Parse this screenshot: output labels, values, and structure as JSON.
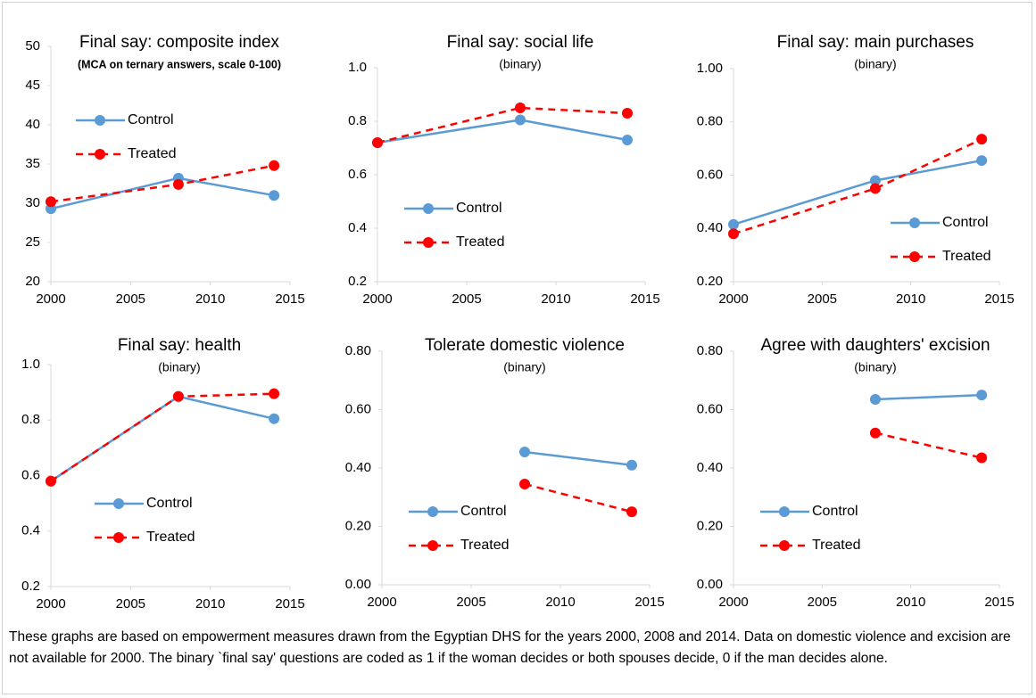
{
  "chart_data": [
    {
      "type": "line",
      "title": "Final say: composite index",
      "subtitle": "(MCA on ternary answers, scale 0-100)",
      "x": [
        2000,
        2008,
        2014
      ],
      "xlim": [
        2000,
        2015
      ],
      "xticks": [
        2000,
        2005,
        2010,
        2015
      ],
      "ylim": [
        20,
        50
      ],
      "yticks": [
        20,
        25,
        30,
        35,
        40,
        45,
        50
      ],
      "legend": "upper left",
      "series": [
        {
          "name": "Control",
          "color": "#5b9bd5",
          "values": [
            29.3,
            33.2,
            31.0
          ]
        },
        {
          "name": "Treated",
          "color": "#ff0000",
          "values": [
            30.2,
            32.4,
            34.8
          ]
        }
      ]
    },
    {
      "type": "line",
      "title": "Final say: social life",
      "subtitle": "(binary)",
      "x": [
        2000,
        2008,
        2014
      ],
      "xlim": [
        2000,
        2015
      ],
      "xticks": [
        2000,
        2005,
        2010,
        2015
      ],
      "ylim": [
        0.2,
        1.0
      ],
      "yticks": [
        0.2,
        0.4,
        0.6,
        0.8,
        {
          "value": 1,
          "label": "1.0"
        }
      ],
      "legend": "lower left",
      "series": [
        {
          "name": "Control",
          "color": "#5b9bd5",
          "values": [
            0.72,
            0.805,
            0.73
          ]
        },
        {
          "name": "Treated",
          "color": "#ff0000",
          "values": [
            0.72,
            0.85,
            0.83
          ]
        }
      ]
    },
    {
      "type": "line",
      "title": "Final say: main purchases",
      "subtitle": "(binary)",
      "x": [
        2000,
        2008,
        2014
      ],
      "xlim": [
        2000,
        2015
      ],
      "xticks": [
        2000,
        2005,
        2010,
        2015
      ],
      "ylim": [
        0.2,
        1.0
      ],
      "yticks": [
        {
          "value": 0.2,
          "label": "0.20"
        },
        {
          "value": 0.4,
          "label": "0.40"
        },
        {
          "value": 0.6,
          "label": "0.60"
        },
        {
          "value": 0.8,
          "label": "0.80"
        },
        {
          "value": 1,
          "label": "1.00"
        }
      ],
      "legend": "lower right",
      "series": [
        {
          "name": "Control",
          "color": "#5b9bd5",
          "values": [
            0.415,
            0.58,
            0.655
          ]
        },
        {
          "name": "Treated",
          "color": "#ff0000",
          "values": [
            0.38,
            0.55,
            0.735
          ]
        }
      ]
    },
    {
      "type": "line",
      "title": "Final say: health",
      "subtitle": "(binary)",
      "x": [
        2000,
        2008,
        2014
      ],
      "xlim": [
        2000,
        2015
      ],
      "xticks": [
        2000,
        2005,
        2010,
        2015
      ],
      "ylim": [
        0.2,
        1.0
      ],
      "yticks": [
        0.2,
        0.4,
        0.6,
        0.8,
        {
          "value": 1,
          "label": "1.0"
        }
      ],
      "legend": "lower center",
      "series": [
        {
          "name": "Control",
          "color": "#5b9bd5",
          "values": [
            0.58,
            0.885,
            0.805
          ]
        },
        {
          "name": "Treated",
          "color": "#ff0000",
          "values": [
            0.58,
            0.885,
            0.895
          ]
        }
      ]
    },
    {
      "type": "line",
      "title": "Tolerate domestic violence",
      "subtitle": "(binary)",
      "x": [
        2000,
        2008,
        2014
      ],
      "xlim": [
        2000,
        2015
      ],
      "xticks": [
        2000,
        2005,
        2010,
        2015
      ],
      "ylim": [
        0,
        0.8
      ],
      "yticks": [
        {
          "value": 0,
          "label": "0.00"
        },
        {
          "value": 0.2,
          "label": "0.20"
        },
        {
          "value": 0.4,
          "label": "0.40"
        },
        {
          "value": 0.6,
          "label": "0.60"
        },
        {
          "value": 0.8,
          "label": "0.80"
        }
      ],
      "legend": "lower left",
      "series": [
        {
          "name": "Control",
          "color": "#5b9bd5",
          "values": [
            null,
            0.455,
            0.41
          ]
        },
        {
          "name": "Treated",
          "color": "#ff0000",
          "values": [
            null,
            0.345,
            0.25
          ]
        }
      ]
    },
    {
      "type": "line",
      "title": "Agree with daughters' excision",
      "subtitle": "(binary)",
      "x": [
        2000,
        2008,
        2014
      ],
      "xlim": [
        2000,
        2015
      ],
      "xticks": [
        2000,
        2005,
        2010,
        2015
      ],
      "ylim": [
        0,
        0.8
      ],
      "yticks": [
        {
          "value": 0,
          "label": "0.00"
        },
        {
          "value": 0.2,
          "label": "0.20"
        },
        {
          "value": 0.4,
          "label": "0.40"
        },
        {
          "value": 0.6,
          "label": "0.60"
        },
        {
          "value": 0.8,
          "label": "0.80"
        }
      ],
      "legend": "lower left",
      "series": [
        {
          "name": "Control",
          "color": "#5b9bd5",
          "values": [
            null,
            0.635,
            0.65
          ]
        },
        {
          "name": "Treated",
          "color": "#ff0000",
          "values": [
            null,
            0.52,
            0.435
          ]
        }
      ]
    }
  ],
  "note": "These graphs are based on empowerment measures drawn from the Egyptian DHS for the years 2000, 2008 and 2014. Data on domestic violence and excision are not available for 2000. The binary `final say'  questions are coded as 1 if the woman decides or both spouses decide, 0 if the man decides alone."
}
